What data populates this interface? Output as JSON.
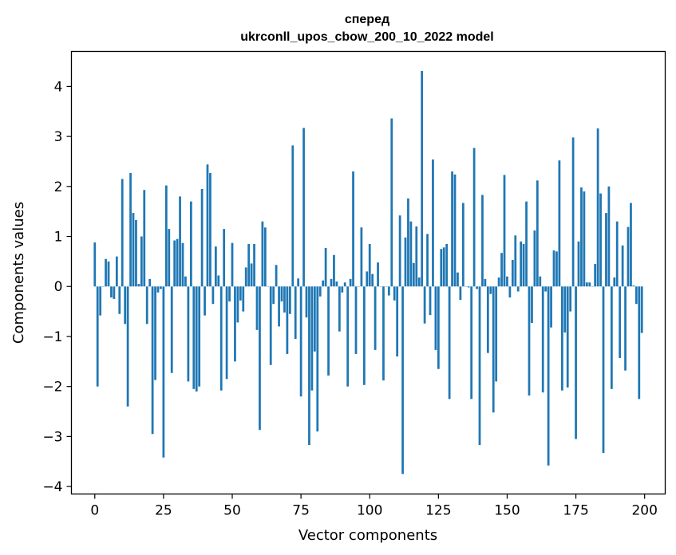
{
  "chart_data": {
    "type": "bar",
    "title": "сперед",
    "subtitle": "ukrconll_upos_cbow_200_10_2022 model",
    "xlabel": "Vector components",
    "ylabel": "Components values",
    "xlim": [
      -8.5,
      207.5
    ],
    "ylim": [
      -4.15,
      4.7
    ],
    "xticks": [
      0,
      25,
      50,
      75,
      100,
      125,
      150,
      175,
      200
    ],
    "xtick_labels": [
      "0",
      "25",
      "50",
      "75",
      "100",
      "125",
      "150",
      "175",
      "200"
    ],
    "yticks": [
      -4,
      -3,
      -2,
      -1,
      0,
      1,
      2,
      3,
      4
    ],
    "ytick_labels": [
      "−4",
      "−3",
      "−2",
      "−1",
      "0",
      "1",
      "2",
      "3",
      "4"
    ],
    "grid": false,
    "bar_color": "#1f77b4",
    "x": [
      0,
      1,
      2,
      3,
      4,
      5,
      6,
      7,
      8,
      9,
      10,
      11,
      12,
      13,
      14,
      15,
      16,
      17,
      18,
      19,
      20,
      21,
      22,
      23,
      24,
      25,
      26,
      27,
      28,
      29,
      30,
      31,
      32,
      33,
      34,
      35,
      36,
      37,
      38,
      39,
      40,
      41,
      42,
      43,
      44,
      45,
      46,
      47,
      48,
      49,
      50,
      51,
      52,
      53,
      54,
      55,
      56,
      57,
      58,
      59,
      60,
      61,
      62,
      63,
      64,
      65,
      66,
      67,
      68,
      69,
      70,
      71,
      72,
      73,
      74,
      75,
      76,
      77,
      78,
      79,
      80,
      81,
      82,
      83,
      84,
      85,
      86,
      87,
      88,
      89,
      90,
      91,
      92,
      93,
      94,
      95,
      96,
      97,
      98,
      99,
      100,
      101,
      102,
      103,
      104,
      105,
      106,
      107,
      108,
      109,
      110,
      111,
      112,
      113,
      114,
      115,
      116,
      117,
      118,
      119,
      120,
      121,
      122,
      123,
      124,
      125,
      126,
      127,
      128,
      129,
      130,
      131,
      132,
      133,
      134,
      135,
      136,
      137,
      138,
      139,
      140,
      141,
      142,
      143,
      144,
      145,
      146,
      147,
      148,
      149,
      150,
      151,
      152,
      153,
      154,
      155,
      156,
      157,
      158,
      159,
      160,
      161,
      162,
      163,
      164,
      165,
      166,
      167,
      168,
      169,
      170,
      171,
      172,
      173,
      174,
      175,
      176,
      177,
      178,
      179,
      180,
      181,
      182,
      183,
      184,
      185,
      186,
      187,
      188,
      189,
      190,
      191,
      192,
      193,
      194,
      195,
      196,
      197,
      198,
      199
    ],
    "values": [
      0.88,
      -2.0,
      -0.58,
      0.0,
      0.55,
      0.5,
      -0.22,
      -0.25,
      0.6,
      -0.55,
      2.15,
      -0.75,
      -2.4,
      2.27,
      1.47,
      1.33,
      0.05,
      1.0,
      1.93,
      -0.75,
      0.15,
      -2.95,
      -1.87,
      -0.12,
      -0.05,
      -3.42,
      2.02,
      1.15,
      -1.73,
      0.92,
      0.95,
      1.8,
      0.87,
      0.2,
      -1.9,
      1.7,
      -2.05,
      -2.1,
      -2.0,
      1.95,
      -0.58,
      2.44,
      2.27,
      -0.35,
      0.8,
      0.22,
      -2.08,
      1.15,
      -1.85,
      -0.3,
      0.87,
      -1.5,
      -0.72,
      -0.28,
      -0.5,
      0.38,
      0.85,
      0.46,
      0.85,
      -0.87,
      -2.87,
      1.3,
      1.18,
      0.0,
      -1.57,
      -0.35,
      0.43,
      -0.8,
      -0.3,
      -0.52,
      -1.35,
      -0.55,
      2.82,
      -1.05,
      0.16,
      -2.2,
      3.17,
      -0.62,
      -3.17,
      -2.08,
      -1.3,
      -2.9,
      -0.2,
      0.12,
      0.77,
      -1.78,
      0.15,
      0.63,
      0.1,
      -0.9,
      -0.12,
      0.08,
      -2.0,
      0.15,
      2.3,
      -1.35,
      0.0,
      1.18,
      -1.97,
      0.3,
      0.85,
      0.25,
      -1.27,
      0.48,
      0.0,
      -1.88,
      0.0,
      -0.18,
      3.36,
      -0.28,
      -1.4,
      1.42,
      -3.75,
      0.98,
      1.76,
      1.3,
      0.47,
      1.2,
      0.18,
      4.31,
      -0.74,
      1.05,
      -0.57,
      2.54,
      -1.27,
      -1.65,
      0.75,
      0.78,
      0.85,
      -2.25,
      2.3,
      2.24,
      0.28,
      -0.27,
      1.67,
      0.0,
      -0.02,
      -2.25,
      2.77,
      -0.05,
      -3.17,
      1.83,
      0.15,
      -1.33,
      -0.15,
      -2.52,
      -1.9,
      0.18,
      0.67,
      2.23,
      0.2,
      -0.22,
      0.53,
      1.02,
      -0.1,
      0.9,
      0.85,
      1.7,
      -2.18,
      -0.73,
      1.12,
      2.12,
      0.2,
      -2.12,
      -0.1,
      -3.58,
      -0.82,
      0.72,
      0.7,
      2.52,
      -2.08,
      -0.92,
      -2.02,
      -0.5,
      2.98,
      -3.05,
      0.9,
      1.98,
      1.9,
      0.08,
      0.08,
      0.0,
      0.45,
      3.16,
      1.86,
      -3.33,
      1.47,
      2.0,
      -2.05,
      0.18,
      1.3,
      -1.43,
      0.82,
      -1.68,
      1.19,
      1.67,
      0.02,
      -0.35,
      -2.25,
      -0.93
    ]
  }
}
